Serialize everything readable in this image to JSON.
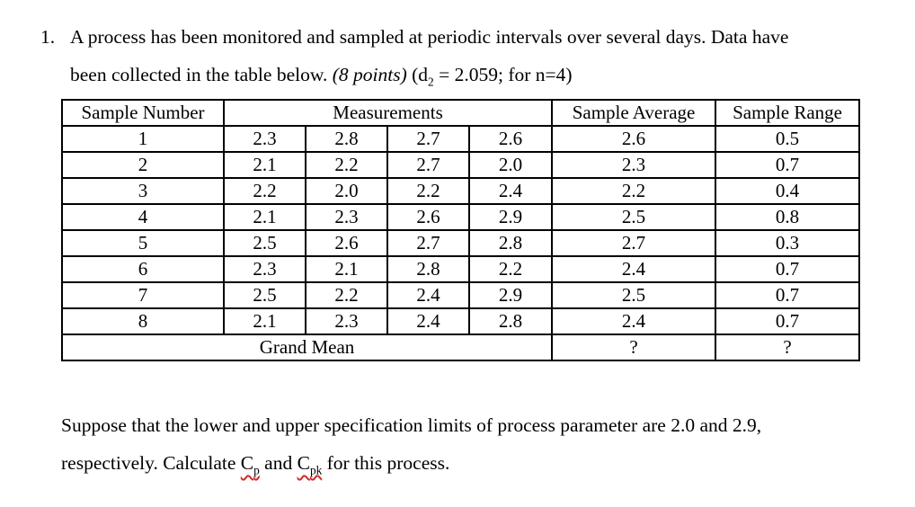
{
  "page": {
    "background_color": "#ffffff",
    "text_color": "#000000"
  },
  "problem": {
    "number": "1.",
    "line1": "A process has been monitored and sampled at periodic intervals over several days. Data have",
    "line2": {
      "text": "been collected in the table below. ",
      "points_italic": "(8 points)",
      "d2_pre": " (d",
      "d2_sub": "2",
      "d2_post": " = 2.059; for n=4)"
    }
  },
  "table": {
    "headers": {
      "sample_number": "Sample Number",
      "measurements": "Measurements",
      "sample_average": "Sample Average",
      "sample_range": "Sample Range"
    },
    "rows": [
      {
        "sample": "1",
        "measurements": [
          "2.3",
          "2.8",
          "2.7",
          "2.6"
        ],
        "average": "2.6",
        "range": "0.5"
      },
      {
        "sample": "2",
        "measurements": [
          "2.1",
          "2.2",
          "2.7",
          "2.0"
        ],
        "average": "2.3",
        "range": "0.7"
      },
      {
        "sample": "3",
        "measurements": [
          "2.2",
          "2.0",
          "2.2",
          "2.4"
        ],
        "average": "2.2",
        "range": "0.4"
      },
      {
        "sample": "4",
        "measurements": [
          "2.1",
          "2.3",
          "2.6",
          "2.9"
        ],
        "average": "2.5",
        "range": "0.8"
      },
      {
        "sample": "5",
        "measurements": [
          "2.5",
          "2.6",
          "2.7",
          "2.8"
        ],
        "average": "2.7",
        "range": "0.3"
      },
      {
        "sample": "6",
        "measurements": [
          "2.3",
          "2.1",
          "2.8",
          "2.2"
        ],
        "average": "2.4",
        "range": "0.7"
      },
      {
        "sample": "7",
        "measurements": [
          "2.5",
          "2.2",
          "2.4",
          "2.9"
        ],
        "average": "2.5",
        "range": "0.7"
      },
      {
        "sample": "8",
        "measurements": [
          "2.1",
          "2.3",
          "2.4",
          "2.8"
        ],
        "average": "2.4",
        "range": "0.7"
      }
    ],
    "footer": {
      "label": "Grand Mean",
      "average": "?",
      "range": "?"
    }
  },
  "closing": {
    "line1": "Suppose that the lower and upper specification limits of process parameter are 2.0 and 2.9,",
    "line2_pre": "respectively. Calculate ",
    "cp_base": "C",
    "cp_sub": "p",
    "and_text": " and ",
    "cpk_base": "C",
    "cpk_sub": "pk",
    "line2_post": " for this process.",
    "spellcheck_color": "#d42a2a"
  }
}
